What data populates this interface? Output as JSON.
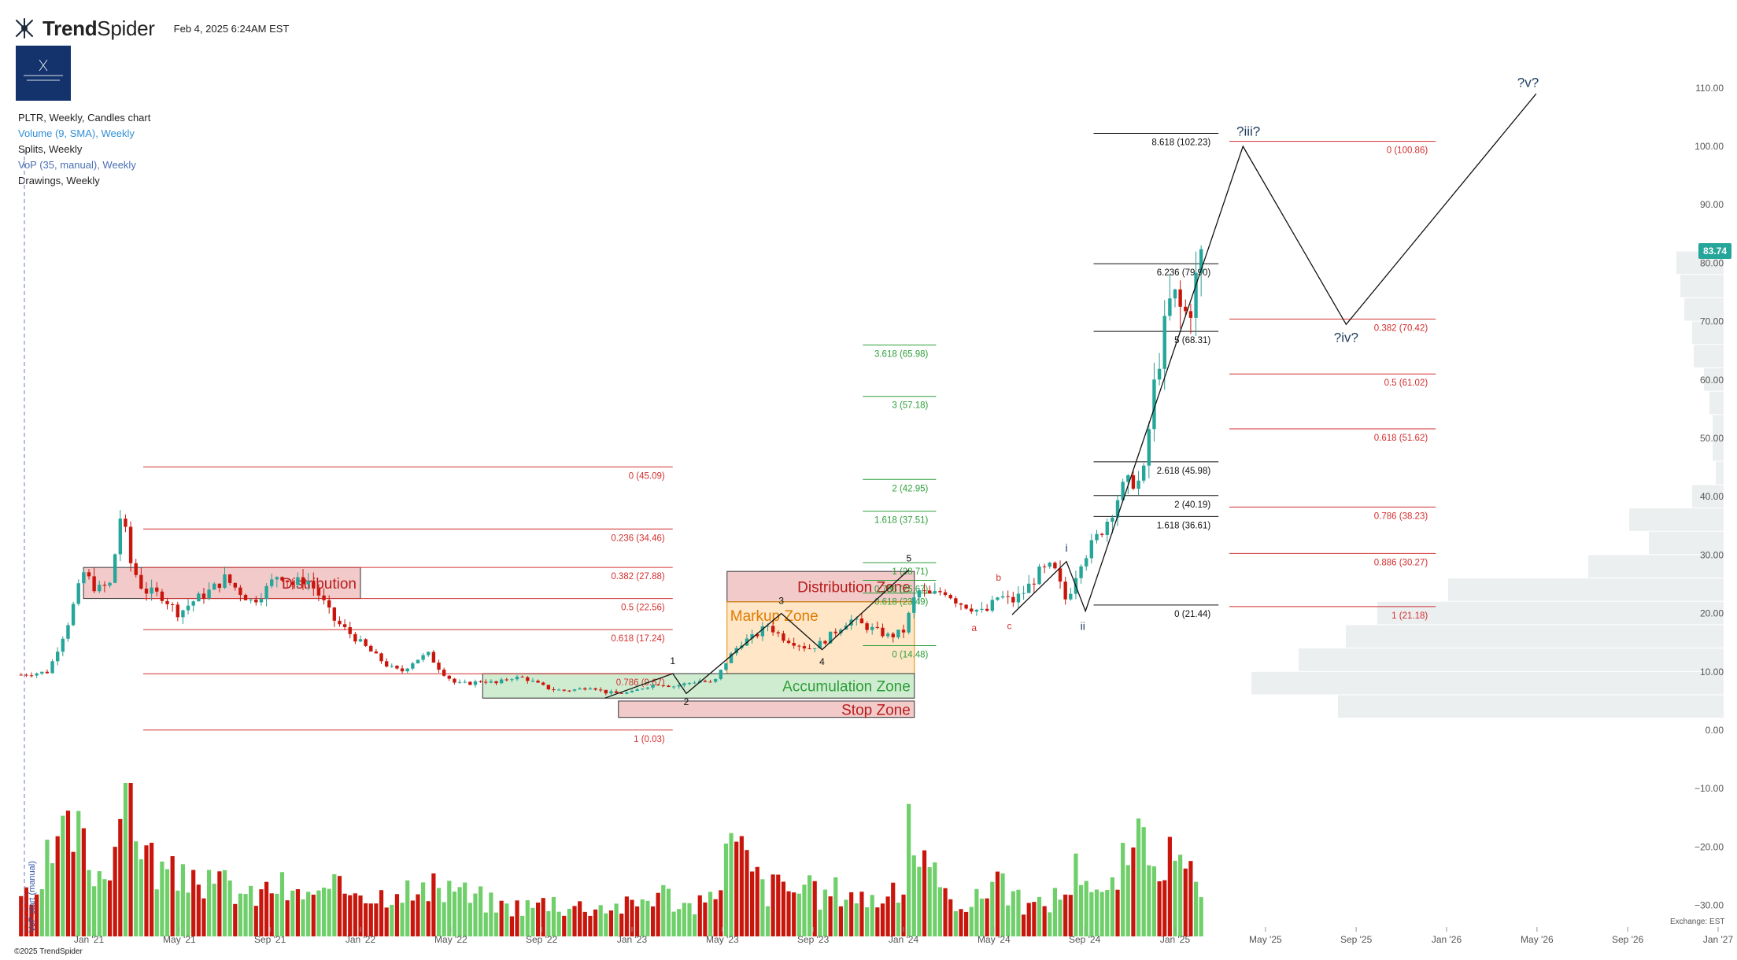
{
  "header": {
    "brand_name_bold": "Trend",
    "brand_name_light": "Spider",
    "timestamp": "Feb 4, 2025 6:24AM EST"
  },
  "legend": {
    "chart": "PLTR, Weekly, Candles chart",
    "volume": "Volume (9, SMA), Weekly",
    "splits": "Splits, Weekly",
    "vop": "VoP (35, manual), Weekly",
    "drawings": "Drawings, Weekly"
  },
  "footer": {
    "copyright": "©2025 TrendSpider",
    "exchange": "Exchange: EST"
  },
  "last_price": "83.74",
  "vop_start_label": "VoP start (manual)",
  "colors": {
    "up": "#6fcf6a",
    "down": "#c9160c",
    "fib_red": "#d32f2f",
    "fib_green": "#2e9e3a",
    "fib_black": "#111111",
    "wave": "#1b3b5c",
    "price_tag": "#26a69a"
  },
  "chart_data": {
    "type": "candlestick",
    "symbol": "PLTR",
    "ylim": [
      -35,
      112
    ],
    "y_ticks": [
      {
        "v": 110,
        "label": "110.00"
      },
      {
        "v": 100,
        "label": "100.00"
      },
      {
        "v": 90,
        "label": "90.00"
      },
      {
        "v": 80,
        "label": "80.00"
      },
      {
        "v": 70,
        "label": "70.00"
      },
      {
        "v": 60,
        "label": "60.00"
      },
      {
        "v": 50,
        "label": "50.00"
      },
      {
        "v": 40,
        "label": "40.00"
      },
      {
        "v": 30,
        "label": "30.00"
      },
      {
        "v": 20,
        "label": "20.00"
      },
      {
        "v": 10,
        "label": "10.00"
      },
      {
        "v": 0,
        "label": "0.00"
      },
      {
        "v": -10,
        "label": "−10.00"
      },
      {
        "v": -20,
        "label": "−20.00"
      },
      {
        "v": -30,
        "label": "−30.00"
      }
    ],
    "x_ticks": [
      {
        "t": 2021.0,
        "label": "Jan '21"
      },
      {
        "t": 2021.333,
        "label": "May '21"
      },
      {
        "t": 2021.667,
        "label": "Sep '21"
      },
      {
        "t": 2022.0,
        "label": "Jan '22"
      },
      {
        "t": 2022.333,
        "label": "May '22"
      },
      {
        "t": 2022.667,
        "label": "Sep '22"
      },
      {
        "t": 2023.0,
        "label": "Jan '23"
      },
      {
        "t": 2023.333,
        "label": "May '23"
      },
      {
        "t": 2023.667,
        "label": "Sep '23"
      },
      {
        "t": 2024.0,
        "label": "Jan '24"
      },
      {
        "t": 2024.333,
        "label": "May '24"
      },
      {
        "t": 2024.667,
        "label": "Sep '24"
      },
      {
        "t": 2025.0,
        "label": "Jan '25"
      },
      {
        "t": 2025.333,
        "label": "May '25"
      },
      {
        "t": 2025.667,
        "label": "Sep '25"
      },
      {
        "t": 2026.0,
        "label": "Jan '26"
      },
      {
        "t": 2026.333,
        "label": "May '26"
      },
      {
        "t": 2026.667,
        "label": "Sep '26"
      },
      {
        "t": 2027.0,
        "label": "Jan '27"
      }
    ],
    "price_path": [
      [
        2020.75,
        9.5
      ],
      [
        2020.85,
        10
      ],
      [
        2020.92,
        18
      ],
      [
        2020.98,
        27
      ],
      [
        2021.03,
        24
      ],
      [
        2021.08,
        25
      ],
      [
        2021.12,
        38
      ],
      [
        2021.15,
        29
      ],
      [
        2021.2,
        24
      ],
      [
        2021.27,
        23
      ],
      [
        2021.33,
        20
      ],
      [
        2021.38,
        22
      ],
      [
        2021.45,
        24
      ],
      [
        2021.5,
        26
      ],
      [
        2021.55,
        24
      ],
      [
        2021.6,
        22
      ],
      [
        2021.65,
        24
      ],
      [
        2021.7,
        27
      ],
      [
        2021.75,
        25
      ],
      [
        2021.8,
        26
      ],
      [
        2021.85,
        23
      ],
      [
        2021.9,
        19
      ],
      [
        2021.95,
        17
      ],
      [
        2022.0,
        15
      ],
      [
        2022.05,
        13
      ],
      [
        2022.1,
        11
      ],
      [
        2022.15,
        10
      ],
      [
        2022.2,
        12
      ],
      [
        2022.25,
        13
      ],
      [
        2022.3,
        10
      ],
      [
        2022.35,
        8
      ],
      [
        2022.4,
        8
      ],
      [
        2022.45,
        8.5
      ],
      [
        2022.5,
        8
      ],
      [
        2022.55,
        9
      ],
      [
        2022.6,
        9
      ],
      [
        2022.65,
        8
      ],
      [
        2022.7,
        7
      ],
      [
        2022.75,
        6.8
      ],
      [
        2022.8,
        7
      ],
      [
        2022.85,
        7.5
      ],
      [
        2022.9,
        6.5
      ],
      [
        2022.95,
        6.3
      ],
      [
        2023.0,
        6.5
      ],
      [
        2023.05,
        7.5
      ],
      [
        2023.1,
        8
      ],
      [
        2023.15,
        7.5
      ],
      [
        2023.2,
        8
      ],
      [
        2023.25,
        8.5
      ],
      [
        2023.3,
        8
      ],
      [
        2023.35,
        12
      ],
      [
        2023.4,
        15
      ],
      [
        2023.45,
        16
      ],
      [
        2023.5,
        18
      ],
      [
        2023.55,
        16
      ],
      [
        2023.6,
        15
      ],
      [
        2023.65,
        14
      ],
      [
        2023.7,
        15
      ],
      [
        2023.75,
        17
      ],
      [
        2023.8,
        19
      ],
      [
        2023.85,
        18
      ],
      [
        2023.9,
        17
      ],
      [
        2023.95,
        16
      ],
      [
        2024.0,
        17
      ],
      [
        2024.05,
        24
      ],
      [
        2024.1,
        23
      ],
      [
        2024.15,
        24
      ],
      [
        2024.2,
        22
      ],
      [
        2024.25,
        21
      ],
      [
        2024.3,
        20
      ],
      [
        2024.35,
        23
      ],
      [
        2024.4,
        22
      ],
      [
        2024.45,
        24
      ],
      [
        2024.5,
        27
      ],
      [
        2024.55,
        28
      ],
      [
        2024.6,
        22
      ],
      [
        2024.65,
        29
      ],
      [
        2024.7,
        32
      ],
      [
        2024.75,
        36
      ],
      [
        2024.8,
        41
      ],
      [
        2024.85,
        43
      ],
      [
        2024.88,
        42
      ],
      [
        2024.92,
        58
      ],
      [
        2024.95,
        66
      ],
      [
        2024.99,
        75
      ],
      [
        2025.02,
        72
      ],
      [
        2025.05,
        71
      ],
      [
        2025.09,
        80
      ],
      [
        2025.11,
        83.74
      ]
    ],
    "volume_path": [
      [
        2020.75,
        6
      ],
      [
        2020.8,
        3
      ],
      [
        2020.85,
        10
      ],
      [
        2020.9,
        12
      ],
      [
        2020.95,
        14
      ],
      [
        2021.0,
        10
      ],
      [
        2021.05,
        8
      ],
      [
        2021.1,
        14
      ],
      [
        2021.15,
        20
      ],
      [
        2021.2,
        12
      ],
      [
        2021.25,
        9
      ],
      [
        2021.3,
        8
      ],
      [
        2021.35,
        7
      ],
      [
        2021.4,
        9
      ],
      [
        2021.45,
        6
      ],
      [
        2021.5,
        7
      ],
      [
        2021.55,
        6
      ],
      [
        2021.6,
        5
      ],
      [
        2021.65,
        6
      ],
      [
        2021.7,
        7
      ],
      [
        2021.75,
        5
      ],
      [
        2021.8,
        6
      ],
      [
        2021.85,
        5
      ],
      [
        2021.9,
        6
      ],
      [
        2021.95,
        6
      ],
      [
        2022.0,
        7
      ],
      [
        2022.05,
        5
      ],
      [
        2022.1,
        6
      ],
      [
        2022.15,
        7
      ],
      [
        2022.2,
        5
      ],
      [
        2022.25,
        6
      ],
      [
        2022.3,
        6
      ],
      [
        2022.35,
        7
      ],
      [
        2022.4,
        5
      ],
      [
        2022.45,
        5
      ],
      [
        2022.5,
        4
      ],
      [
        2022.55,
        4
      ],
      [
        2022.6,
        4
      ],
      [
        2022.65,
        4
      ],
      [
        2022.7,
        5
      ],
      [
        2022.75,
        4
      ],
      [
        2022.8,
        4
      ],
      [
        2022.85,
        4
      ],
      [
        2022.9,
        4
      ],
      [
        2022.95,
        4
      ],
      [
        2023.0,
        4
      ],
      [
        2023.05,
        5
      ],
      [
        2023.1,
        6
      ],
      [
        2023.15,
        5
      ],
      [
        2023.2,
        4
      ],
      [
        2023.25,
        4
      ],
      [
        2023.3,
        5
      ],
      [
        2023.35,
        12
      ],
      [
        2023.4,
        11
      ],
      [
        2023.45,
        8
      ],
      [
        2023.5,
        6
      ],
      [
        2023.55,
        7
      ],
      [
        2023.6,
        6
      ],
      [
        2023.65,
        6
      ],
      [
        2023.7,
        5
      ],
      [
        2023.75,
        6
      ],
      [
        2023.8,
        6
      ],
      [
        2023.85,
        5
      ],
      [
        2023.9,
        5
      ],
      [
        2023.95,
        5
      ],
      [
        2024.0,
        6
      ],
      [
        2024.02,
        19
      ],
      [
        2024.05,
        10
      ],
      [
        2024.1,
        8
      ],
      [
        2024.15,
        5
      ],
      [
        2024.2,
        5
      ],
      [
        2024.25,
        4
      ],
      [
        2024.3,
        6
      ],
      [
        2024.35,
        9
      ],
      [
        2024.4,
        5
      ],
      [
        2024.45,
        4
      ],
      [
        2024.5,
        4
      ],
      [
        2024.55,
        5
      ],
      [
        2024.6,
        6
      ],
      [
        2024.65,
        10
      ],
      [
        2024.7,
        7
      ],
      [
        2024.75,
        5
      ],
      [
        2024.8,
        9
      ],
      [
        2024.85,
        11
      ],
      [
        2024.9,
        13
      ],
      [
        2024.95,
        11
      ],
      [
        2025.0,
        9
      ],
      [
        2025.05,
        8
      ],
      [
        2025.1,
        5
      ]
    ],
    "volume_max": 19,
    "fib_levels": [
      {
        "group": "retrace_2021",
        "x0": 2021.2,
        "x1": 2023.15,
        "color": "red",
        "levels": [
          {
            "v": 45.09,
            "label": "0 (45.09)"
          },
          {
            "v": 34.46,
            "label": "0.236 (34.46)"
          },
          {
            "v": 27.88,
            "label": "0.382 (27.88)"
          },
          {
            "v": 22.56,
            "label": "0.5 (22.56)"
          },
          {
            "v": 17.24,
            "label": "0.618 (17.24)"
          },
          {
            "v": 9.67,
            "label": "0.786 (9.67)"
          },
          {
            "v": 0.03,
            "label": "1 (0.03)"
          }
        ]
      },
      {
        "group": "ext_2023",
        "x0": 2023.85,
        "x1": 2024.12,
        "color": "green",
        "levels": [
          {
            "v": 65.98,
            "label": "3.618 (65.98)"
          },
          {
            "v": 57.18,
            "label": "3 (57.18)"
          },
          {
            "v": 42.95,
            "label": "2 (42.95)"
          },
          {
            "v": 37.51,
            "label": "1.618 (37.51)"
          },
          {
            "v": 28.71,
            "label": "1 (28.71)"
          },
          {
            "v": 25.67,
            "label": "0.786 (25.67)"
          },
          {
            "v": 23.49,
            "label": "0.618 (23.49)"
          },
          {
            "v": 14.48,
            "label": "0 (14.48)"
          }
        ]
      },
      {
        "group": "ext_2024",
        "x0": 2024.7,
        "x1": 2025.16,
        "color": "black",
        "levels": [
          {
            "v": 102.23,
            "label": "8.618 (102.23)"
          },
          {
            "v": 79.9,
            "label": "6.236 (79.90)"
          },
          {
            "v": 68.31,
            "label": "5 (68.31)"
          },
          {
            "v": 45.98,
            "label": "2.618 (45.98)"
          },
          {
            "v": 40.19,
            "label": "2 (40.19)"
          },
          {
            "v": 36.61,
            "label": "1.618 (36.61)"
          },
          {
            "v": 21.44,
            "label": "0 (21.44)"
          }
        ]
      },
      {
        "group": "retrace_proj",
        "x0": 2025.2,
        "x1": 2025.96,
        "color": "red",
        "levels": [
          {
            "v": 100.86,
            "label": "0 (100.86)"
          },
          {
            "v": 70.42,
            "label": "0.382 (70.42)"
          },
          {
            "v": 61.02,
            "label": "0.5 (61.02)"
          },
          {
            "v": 51.62,
            "label": "0.618 (51.62)"
          },
          {
            "v": 38.23,
            "label": "0.786 (38.23)"
          },
          {
            "v": 30.27,
            "label": "0.886 (30.27)"
          },
          {
            "v": 21.18,
            "label": "1 (21.18)"
          }
        ]
      }
    ],
    "zones": [
      {
        "label": "Distribution",
        "x0": 2020.98,
        "x1": 2022.0,
        "y0": 22.56,
        "y1": 27.88,
        "color": "red"
      },
      {
        "label": "Distribution Zone",
        "x0": 2023.35,
        "x1": 2024.04,
        "y0": 22.0,
        "y1": 27.2,
        "color": "red"
      },
      {
        "label": "Markup Zone",
        "x0": 2023.35,
        "x1": 2024.04,
        "y0": 9.7,
        "y1": 22.0,
        "color": "orange"
      },
      {
        "label": "Accumulation Zone",
        "x0": 2022.45,
        "x1": 2024.04,
        "y0": 5.5,
        "y1": 9.7,
        "color": "green"
      },
      {
        "label": "Stop Zone",
        "x0": 2022.95,
        "x1": 2024.04,
        "y0": 2.2,
        "y1": 5.0,
        "color": "red"
      }
    ],
    "wave_paths": [
      {
        "color": "black",
        "points": [
          [
            2022.9,
            5.5
          ],
          [
            2023.15,
            9.7
          ],
          [
            2023.2,
            6.3
          ],
          [
            2023.55,
            20.0
          ],
          [
            2023.7,
            13.8
          ],
          [
            2024.02,
            27.5
          ]
        ]
      },
      {
        "color": "black",
        "points": [
          [
            2024.4,
            19.8
          ],
          [
            2024.6,
            28.9
          ],
          [
            2024.67,
            20.4
          ],
          [
            2025.25,
            100.0
          ],
          [
            2025.63,
            69.5
          ],
          [
            2026.33,
            109.0
          ]
        ]
      }
    ],
    "wave_labels": [
      {
        "t": "1",
        "x": 2023.15,
        "y": 11.3,
        "c": "black",
        "s": 12
      },
      {
        "t": "2",
        "x": 2023.2,
        "y": 4.3,
        "c": "black",
        "s": 12
      },
      {
        "t": "3",
        "x": 2023.55,
        "y": 21.6,
        "c": "black",
        "s": 12
      },
      {
        "t": "4",
        "x": 2023.7,
        "y": 11.2,
        "c": "black",
        "s": 12
      },
      {
        "t": "5",
        "x": 2024.02,
        "y": 28.9,
        "c": "black",
        "s": 12
      },
      {
        "t": "a",
        "x": 2024.26,
        "y": 17.0,
        "c": "red",
        "s": 12
      },
      {
        "t": "b",
        "x": 2024.35,
        "y": 25.6,
        "c": "red",
        "s": 12
      },
      {
        "t": "c",
        "x": 2024.39,
        "y": 17.3,
        "c": "red",
        "s": 12
      },
      {
        "t": "i",
        "x": 2024.6,
        "y": 30.6,
        "c": "wave",
        "s": 14
      },
      {
        "t": "ii",
        "x": 2024.66,
        "y": 17.2,
        "c": "wave",
        "s": 14
      },
      {
        "t": "?iii?",
        "x": 2025.27,
        "y": 101.8,
        "c": "wave",
        "s": 17
      },
      {
        "t": "?iv?",
        "x": 2025.63,
        "y": 66.5,
        "c": "wave",
        "s": 17
      },
      {
        "t": "?v?",
        "x": 2026.3,
        "y": 110.2,
        "c": "wave",
        "s": 17
      }
    ],
    "volume_profile": [
      {
        "y0": 78,
        "y1": 82,
        "w": 60
      },
      {
        "y0": 74,
        "y1": 78,
        "w": 55
      },
      {
        "y0": 70,
        "y1": 74,
        "w": 50
      },
      {
        "y0": 66,
        "y1": 70,
        "w": 40
      },
      {
        "y0": 62,
        "y1": 66,
        "w": 38
      },
      {
        "y0": 58,
        "y1": 62,
        "w": 25
      },
      {
        "y0": 54,
        "y1": 58,
        "w": 18
      },
      {
        "y0": 50,
        "y1": 54,
        "w": 14
      },
      {
        "y0": 46,
        "y1": 50,
        "w": 14
      },
      {
        "y0": 42,
        "y1": 46,
        "w": 10
      },
      {
        "y0": 38,
        "y1": 42,
        "w": 40
      },
      {
        "y0": 34,
        "y1": 38,
        "w": 120
      },
      {
        "y0": 30,
        "y1": 34,
        "w": 95
      },
      {
        "y0": 26,
        "y1": 30,
        "w": 172
      },
      {
        "y0": 22,
        "y1": 26,
        "w": 350
      },
      {
        "y0": 18,
        "y1": 22,
        "w": 440
      },
      {
        "y0": 14,
        "y1": 18,
        "w": 480
      },
      {
        "y0": 10,
        "y1": 14,
        "w": 540
      },
      {
        "y0": 6,
        "y1": 10,
        "w": 600
      },
      {
        "y0": 2,
        "y1": 6,
        "w": 490
      }
    ]
  }
}
